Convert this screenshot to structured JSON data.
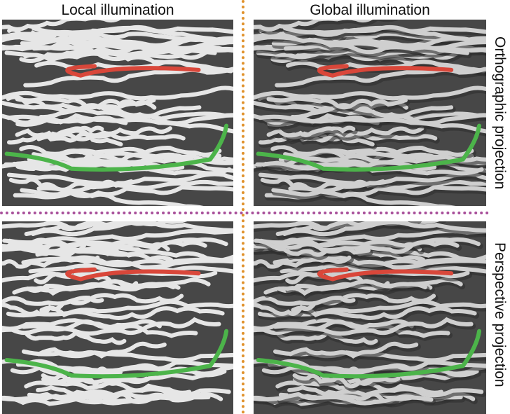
{
  "headers": {
    "left": "Local illumination",
    "right": "Global illumination"
  },
  "side_labels": {
    "top": "Orthographic projection",
    "bottom": "Perspective projection"
  },
  "colors": {
    "background_panel": "#474747",
    "fiber": "#e6e6e6",
    "highlight_red": "#d9473a",
    "highlight_green": "#4cb44a",
    "divider_vertical": "#e0912a",
    "divider_horizontal": "#a84f9a"
  }
}
